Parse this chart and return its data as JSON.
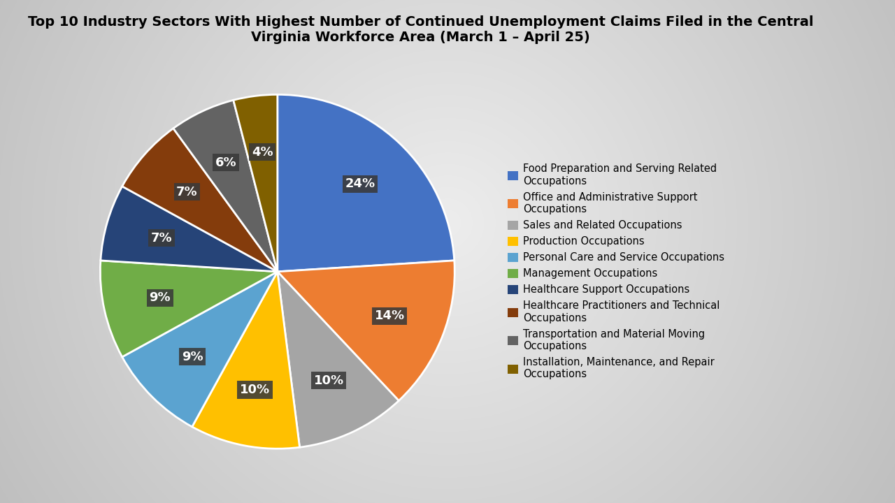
{
  "title": "Top 10 Industry Sectors With Highest Number of Continued Unemployment Claims Filed in the Central\nVirginia Workforce Area (March 1 – April 25)",
  "slices": [
    {
      "label": "Food Preparation and Serving Related\nOccupations",
      "pct": 24,
      "color": "#4472C4"
    },
    {
      "label": "Office and Administrative Support\nOccupations",
      "pct": 14,
      "color": "#ED7D31"
    },
    {
      "label": "Sales and Related Occupations",
      "pct": 10,
      "color": "#A5A5A5"
    },
    {
      "label": "Production Occupations",
      "pct": 10,
      "color": "#FFC000"
    },
    {
      "label": "Personal Care and Service Occupations",
      "pct": 9,
      "color": "#5BA3D0"
    },
    {
      "label": "Management Occupations",
      "pct": 9,
      "color": "#70AD47"
    },
    {
      "label": "Healthcare Support Occupations",
      "pct": 7,
      "color": "#264478"
    },
    {
      "label": "Healthcare Practitioners and Technical\nOccupations",
      "pct": 7,
      "color": "#843C0C"
    },
    {
      "label": "Transportation and Material Moving\nOccupations",
      "pct": 6,
      "color": "#636363"
    },
    {
      "label": "Installation, Maintenance, and Repair\nOccupations",
      "pct": 4,
      "color": "#806000"
    }
  ],
  "legend_labels": [
    "Food Preparation and Serving Related\nOccupations",
    "Office and Administrative Support\nOccupations",
    "Sales and Related Occupations",
    "Production Occupations",
    "Personal Care and Service Occupations",
    "Management Occupations",
    "Healthcare Support Occupations",
    "Healthcare Practitioners and Technical\nOccupations",
    "Transportation and Material Moving\nOccupations",
    "Installation, Maintenance, and Repair\nOccupations"
  ],
  "background_color_light": "#E8E8E8",
  "background_color_dark": "#C0C0C0",
  "label_bg_color": "#3A3A3A",
  "label_text_color": "#FFFFFF",
  "title_fontsize": 14,
  "legend_fontsize": 10.5,
  "wedge_edge_color": "#FFFFFF",
  "wedge_linewidth": 2.0
}
